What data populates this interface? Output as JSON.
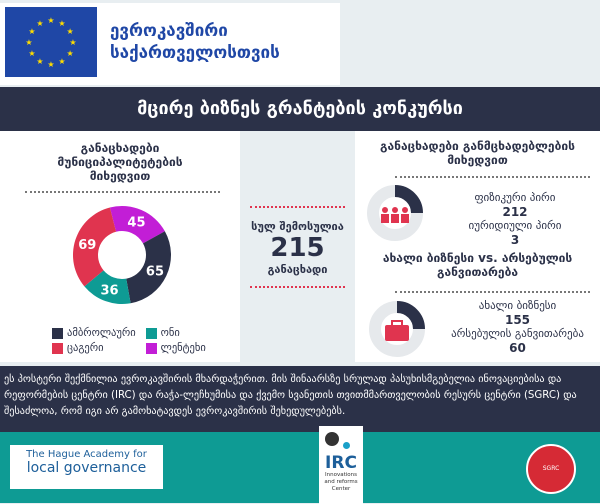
{
  "header": {
    "eu_line1": "ევროკავშირი",
    "eu_line2": "საქართველოსთვის",
    "title": "მცირე ბიზნეს გრანტების კონკურსი"
  },
  "municipal": {
    "title": "განაცხადები მუნიციპალიტეტების მიხედვით"
  },
  "total": {
    "label_top": "სულ შემოსულია",
    "value": "215",
    "label_bottom": "განაცხადი"
  },
  "applicants": {
    "title": "განაცხადები განმცხადებლების მიხედვით",
    "items": [
      {
        "label": "ფიზიკური პირი",
        "value": "212"
      },
      {
        "label": "იურიდიული პირი",
        "value": "3"
      }
    ]
  },
  "business": {
    "title": "ახალი ბიზნესი vs. არსებულის განვითარება",
    "items": [
      {
        "label": "ახალი ბიზნესი",
        "value": "155"
      },
      {
        "label": "არსებულის განვითარება",
        "value": "60"
      }
    ]
  },
  "footnote": "ეს პოსტერი შექმნილია ევროკავშირის მხარდაჭერით. მის შინაარსზე სრულად პასუხისმგებელია ინოვაციებისა და რეფორმების ცენტრი (IRC) და რაჭა-ლეჩხუმისა და ქვემო სვანეთის თვითმმართველობის რესურს ცენტრი (SGRC) და შესაძლოა, რომ იგი არ გამოხატავდეს ევროკავშირის შეხედულებებს.",
  "logos": {
    "hague_line1": "The Hague Academy for",
    "hague_line2": "local governance",
    "irc": "IRC",
    "irc_sub1": "Innovations",
    "irc_sub2": "and reforms",
    "irc_sub3": "Center",
    "sgrc": "SGRC"
  },
  "chart_data": {
    "type": "pie",
    "donut": true,
    "categories": [
      "ლენტეხი",
      "ამბროლაური",
      "ონი",
      "ცაგერი"
    ],
    "values": [
      45,
      65,
      36,
      69
    ],
    "colors": [
      "#c21ed6",
      "#2b3148",
      "#0e9b94",
      "#e0344f"
    ],
    "legend_order": [
      1,
      2,
      3,
      0
    ],
    "legend": "bottom"
  }
}
